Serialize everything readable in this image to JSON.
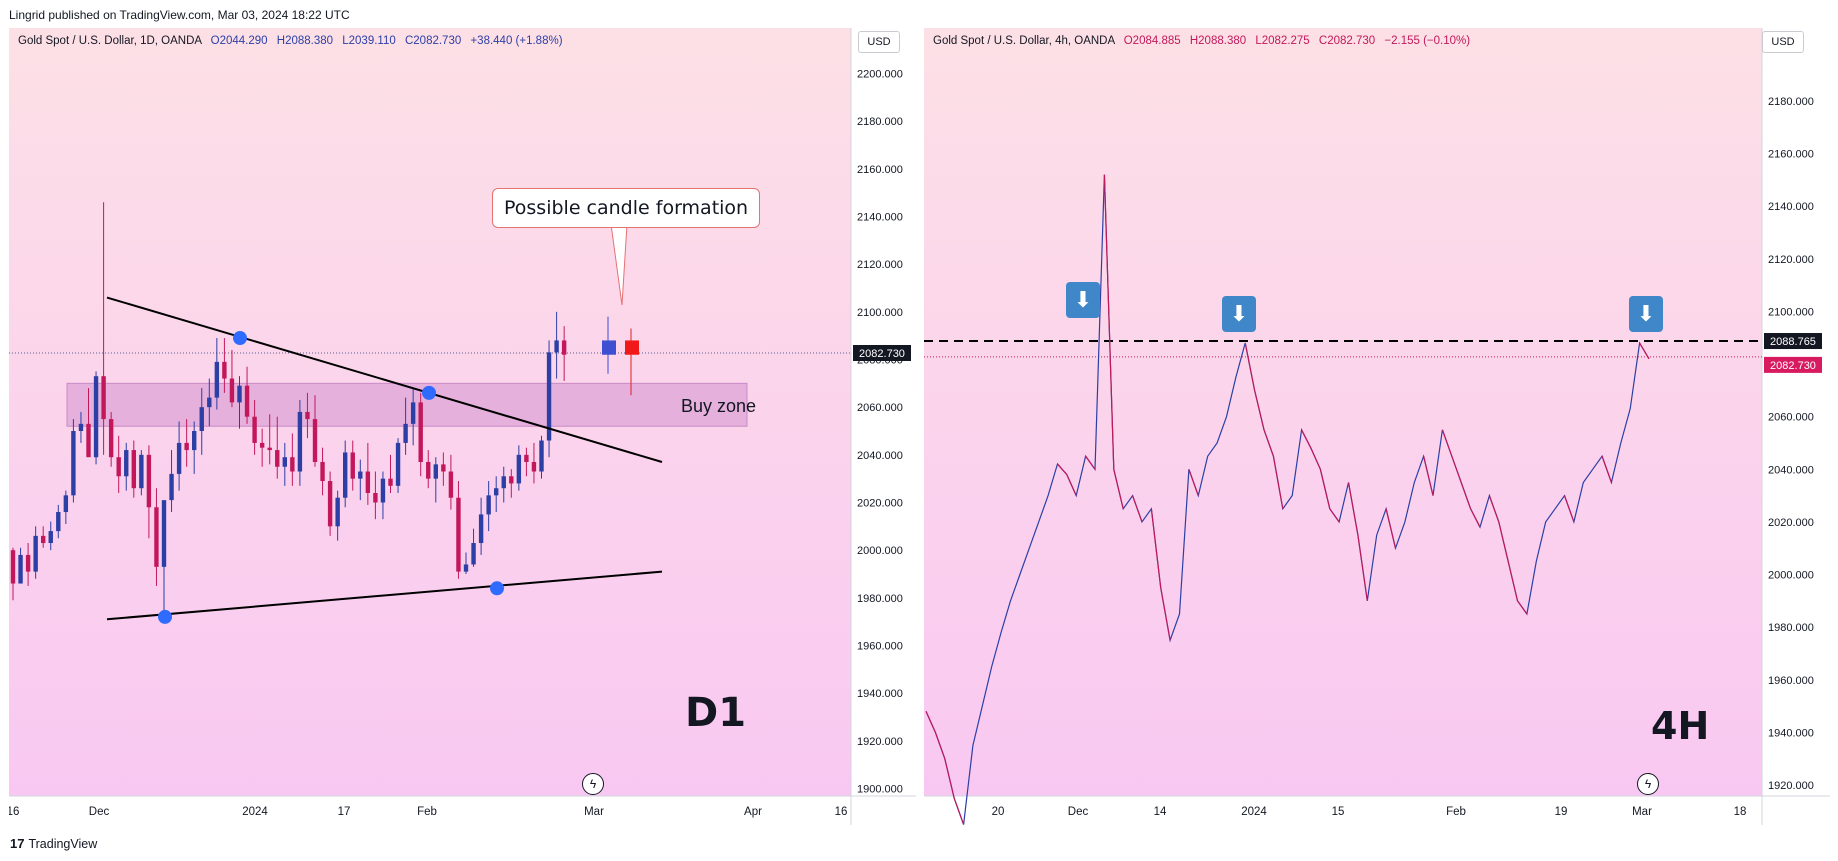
{
  "header": {
    "published": "Lingrid published on TradingView.com, Mar 03, 2024 18:22 UTC"
  },
  "footer": {
    "brand": "TradingView",
    "logo_glyph": "17"
  },
  "colors": {
    "up": "#2b3fa5",
    "down": "#c2185b",
    "bg_top": "#fde0e6",
    "bg_bottom": "#f9c8f2",
    "zone": "#e0a6d8",
    "dot": "#2f6bff",
    "price_tag": "#ffffff"
  },
  "left_panel": {
    "legend": {
      "symbol": "Gold Spot / U.S. Dollar, 1D, OANDA",
      "open": "O2044.290",
      "high": "H2088.380",
      "low": "L2039.110",
      "close": "C2082.730",
      "change": "+38.440 (+1.88%)"
    },
    "currency": "USD",
    "timeframe_label": "D1",
    "callout": "Possible candle formation",
    "zone_label": "Buy zone",
    "last_price_tag": "2082.730",
    "bolt_icon": "lightning-icon"
  },
  "right_panel": {
    "legend": {
      "symbol": "Gold Spot / U.S. Dollar, 4h, OANDA",
      "open": "O2084.885",
      "high": "H2088.380",
      "low": "L2082.275",
      "close": "C2082.730",
      "change": "−2.155 (−0.10%)"
    },
    "currency": "USD",
    "timeframe_label": "4H",
    "resistance_tag": "2088.765",
    "last_price_tag": "2082.730",
    "down_arrow_icon": "down-arrow-icon",
    "bolt_icon": "lightning-icon"
  },
  "chart_data": [
    {
      "type": "candlestick",
      "title": "Gold Spot / U.S. Dollar, 1D, OANDA",
      "x_ticks": [
        "16",
        "Dec",
        "2024",
        "17",
        "Feb",
        "Mar",
        "Apr",
        "16"
      ],
      "y_ticks": [
        2200,
        2180,
        2160,
        2140,
        2120,
        2100,
        2080,
        2060,
        2040,
        2020,
        2000,
        1980,
        1960,
        1940,
        1920,
        1900
      ],
      "ylim": [
        1880,
        2210
      ],
      "last_price": 2082.73,
      "buy_zone": [
        2052,
        2070
      ],
      "trendlines": [
        {
          "name": "upper",
          "from": [
            "Nov 27",
            2106
          ],
          "to": [
            "Mar 20",
            2037
          ]
        },
        {
          "name": "lower",
          "from": [
            "Nov 27",
            1971
          ],
          "to": [
            "Mar 20",
            1991
          ]
        }
      ],
      "touch_points": [
        [
          "Dec 27",
          2089
        ],
        [
          "Feb 1",
          2066
        ],
        [
          "Dec 12",
          1972
        ],
        [
          "Feb 16",
          1984
        ]
      ],
      "candles": [
        [
          2000,
          2001,
          1979,
          1986
        ],
        [
          1986,
          2001,
          1986,
          1998
        ],
        [
          1998,
          2003,
          1985,
          1991
        ],
        [
          1991,
          2010,
          1988,
          2006
        ],
        [
          2006,
          2010,
          2001,
          2003
        ],
        [
          2003,
          2012,
          2000,
          2008
        ],
        [
          2008,
          2019,
          2005,
          2016
        ],
        [
          2016,
          2025,
          2011,
          2023
        ],
        [
          2023,
          2055,
          2020,
          2050
        ],
        [
          2050,
          2058,
          2045,
          2053
        ],
        [
          2053,
          2068,
          2040,
          2039
        ],
        [
          2039,
          2075,
          2036,
          2073
        ],
        [
          2073,
          2146,
          2040,
          2055
        ],
        [
          2055,
          2058,
          2035,
          2039
        ],
        [
          2039,
          2048,
          2024,
          2031
        ],
        [
          2031,
          2045,
          2025,
          2042
        ],
        [
          2042,
          2046,
          2022,
          2026
        ],
        [
          2026,
          2042,
          2023,
          2040
        ],
        [
          2040,
          2044,
          2005,
          2018
        ],
        [
          2018,
          2026,
          1985,
          1993
        ],
        [
          1993,
          2020,
          1974,
          2021
        ],
        [
          2021,
          2042,
          2016,
          2032
        ],
        [
          2032,
          2054,
          2025,
          2045
        ],
        [
          2045,
          2055,
          2035,
          2042
        ],
        [
          2042,
          2054,
          2032,
          2050
        ],
        [
          2050,
          2068,
          2040,
          2060
        ],
        [
          2060,
          2072,
          2052,
          2064
        ],
        [
          2064,
          2089,
          2059,
          2079
        ],
        [
          2079,
          2089,
          2066,
          2072
        ],
        [
          2072,
          2084,
          2060,
          2062
        ],
        [
          2062,
          2073,
          2051,
          2069
        ],
        [
          2069,
          2077,
          2053,
          2056
        ],
        [
          2056,
          2063,
          2040,
          2045
        ],
        [
          2045,
          2051,
          2035,
          2043
        ],
        [
          2043,
          2057,
          2036,
          2042
        ],
        [
          2042,
          2056,
          2030,
          2035
        ],
        [
          2035,
          2045,
          2027,
          2039
        ],
        [
          2039,
          2049,
          2027,
          2033
        ],
        [
          2033,
          2063,
          2027,
          2058
        ],
        [
          2058,
          2066,
          2047,
          2055
        ],
        [
          2055,
          2065,
          2035,
          2037
        ],
        [
          2037,
          2043,
          2023,
          2029
        ],
        [
          2029,
          2033,
          2006,
          2010
        ],
        [
          2010,
          2025,
          2004,
          2022
        ],
        [
          2022,
          2046,
          2018,
          2041
        ],
        [
          2041,
          2046,
          2025,
          2030
        ],
        [
          2030,
          2038,
          2021,
          2033
        ],
        [
          2033,
          2045,
          2019,
          2024
        ],
        [
          2024,
          2033,
          2013,
          2020
        ],
        [
          2020,
          2033,
          2013,
          2030
        ],
        [
          2030,
          2040,
          2024,
          2027
        ],
        [
          2027,
          2047,
          2024,
          2045
        ],
        [
          2045,
          2064,
          2040,
          2053
        ],
        [
          2053,
          2068,
          2044,
          2062
        ],
        [
          2062,
          2066,
          2031,
          2037
        ],
        [
          2037,
          2042,
          2026,
          2030
        ],
        [
          2030,
          2039,
          2020,
          2036
        ],
        [
          2036,
          2041,
          2027,
          2033
        ],
        [
          2033,
          2040,
          2017,
          2022
        ],
        [
          2022,
          2029,
          1988,
          1991
        ],
        [
          1991,
          1999,
          1990,
          1994
        ],
        [
          1994,
          2009,
          1993,
          2003
        ],
        [
          2003,
          2022,
          1998,
          2015
        ],
        [
          2015,
          2029,
          2008,
          2023
        ],
        [
          2023,
          2031,
          2016,
          2026
        ],
        [
          2026,
          2035,
          2020,
          2031
        ],
        [
          2031,
          2034,
          2022,
          2028
        ],
        [
          2028,
          2044,
          2025,
          2040
        ],
        [
          2040,
          2043,
          2031,
          2037
        ],
        [
          2037,
          2045,
          2028,
          2033
        ],
        [
          2033,
          2048,
          2030,
          2046
        ],
        [
          2046,
          2088,
          2039,
          2083
        ],
        [
          2083,
          2100,
          2072,
          2088
        ],
        [
          2088,
          2094,
          2071,
          2082
        ]
      ]
    },
    {
      "type": "line",
      "title": "Gold Spot / U.S. Dollar, 4h, OANDA",
      "x_ticks": [
        "20",
        "Dec",
        "14",
        "2024",
        "15",
        "Feb",
        "19",
        "Mar",
        "18"
      ],
      "y_ticks": [
        2180,
        2160,
        2140,
        2120,
        2100,
        2080,
        2060,
        2040,
        2020,
        2000,
        1980,
        1960,
        1940,
        1920
      ],
      "ylim": [
        1912,
        2195
      ],
      "resistance": 2088.765,
      "last_price": 2082.73,
      "series": [
        {
          "values": [
            1948,
            1940,
            1930,
            1915,
            1905,
            1935,
            1950,
            1965,
            1978,
            1990,
            2000,
            2010,
            2020,
            2030,
            2042,
            2038,
            2030,
            2045,
            2040,
            2152,
            2040,
            2025,
            2030,
            2020,
            2025,
            1995,
            1975,
            1985,
            2040,
            2030,
            2045,
            2050,
            2060,
            2075,
            2088,
            2070,
            2055,
            2045,
            2025,
            2030,
            2055,
            2048,
            2040,
            2025,
            2020,
            2035,
            2015,
            1990,
            2015,
            2025,
            2010,
            2020,
            2035,
            2045,
            2030,
            2055,
            2045,
            2035,
            2025,
            2018,
            2030,
            2020,
            2005,
            1990,
            1985,
            2005,
            2020,
            2025,
            2030,
            2020,
            2035,
            2040,
            2045,
            2035,
            2050,
            2063,
            2088,
            2082
          ]
        }
      ]
    }
  ]
}
